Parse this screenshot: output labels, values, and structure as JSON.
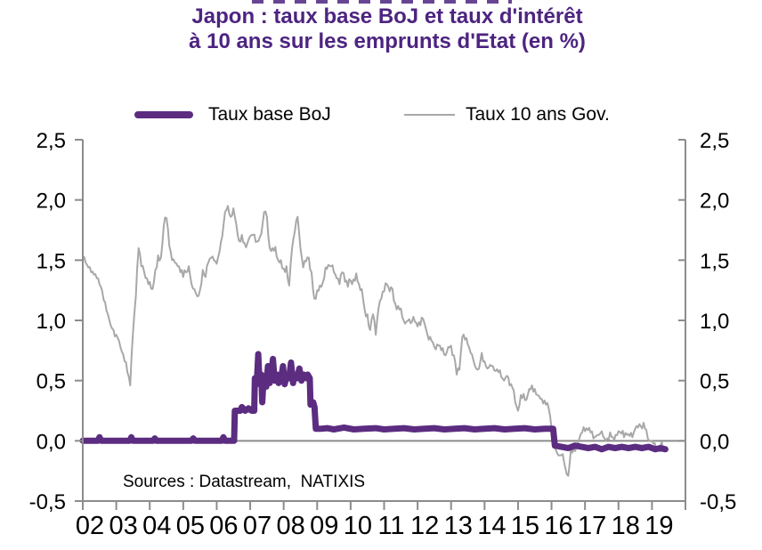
{
  "title": {
    "line1": "Japon : taux base BoJ et taux d'intérêt",
    "line2": "à 10 ans sur les emprunts d'Etat (en %)"
  },
  "legend": {
    "boj_label": "Taux base BoJ",
    "gov_label": "Taux 10 ans Gov."
  },
  "source_note": "Sources : Datastream,  NATIXIS",
  "colors": {
    "title_purple": "#4d2480",
    "boj_line": "#5b2c80",
    "gov_line": "#a8a8a8",
    "axis_gray": "#8c8c8c",
    "text_black": "#000000"
  },
  "chart_data": {
    "type": "line",
    "title": "Japon : taux base BoJ et taux d'intérêt à 10 ans sur les emprunts d'Etat (en %)",
    "xlabel": "",
    "ylabel": "%",
    "ylim": [
      -0.5,
      2.5
    ],
    "x_range_years": [
      2002,
      2020
    ],
    "grid": false,
    "zero_line": true,
    "legend_position": "top",
    "y_tick_values": [
      2.5,
      2.0,
      1.5,
      1.0,
      0.5,
      0.0,
      -0.5
    ],
    "y_tick_labels": [
      "2,5",
      "2,0",
      "1,5",
      "1,0",
      "0,5",
      "0,0",
      "-0,5"
    ],
    "y_axis_sides": [
      "left",
      "right"
    ],
    "x_tick_labels": [
      "02",
      "03",
      "04",
      "05",
      "06",
      "07",
      "08",
      "09",
      "10",
      "11",
      "12",
      "13",
      "14",
      "15",
      "16",
      "17",
      "18",
      "19"
    ],
    "series": [
      {
        "name": "Taux 10 ans Gov.",
        "color": "#a8a8a8",
        "stroke_width": 2,
        "x_start": 2002.0,
        "x_step": 0.0833333,
        "values": [
          1.5,
          1.48,
          1.44,
          1.4,
          1.38,
          1.35,
          1.3,
          1.24,
          1.15,
          1.05,
          0.96,
          0.92,
          0.88,
          0.83,
          0.74,
          0.66,
          0.57,
          0.46,
          0.9,
          1.2,
          1.6,
          1.45,
          1.4,
          1.35,
          1.32,
          1.26,
          1.42,
          1.54,
          1.52,
          1.78,
          1.85,
          1.62,
          1.5,
          1.48,
          1.45,
          1.4,
          1.36,
          1.4,
          1.45,
          1.3,
          1.26,
          1.2,
          1.25,
          1.42,
          1.36,
          1.48,
          1.52,
          1.5,
          1.47,
          1.57,
          1.7,
          1.9,
          1.95,
          1.86,
          1.93,
          1.8,
          1.66,
          1.71,
          1.64,
          1.64,
          1.7,
          1.71,
          1.65,
          1.66,
          1.72,
          1.9,
          1.86,
          1.6,
          1.6,
          1.61,
          1.5,
          1.5,
          1.43,
          1.45,
          1.29,
          1.6,
          1.74,
          1.86,
          1.6,
          1.44,
          1.49,
          1.52,
          1.4,
          1.18,
          1.25,
          1.29,
          1.31,
          1.44,
          1.46,
          1.45,
          1.4,
          1.35,
          1.3,
          1.4,
          1.32,
          1.28,
          1.33,
          1.34,
          1.39,
          1.3,
          1.26,
          1.09,
          1.05,
          0.92,
          1.05,
          0.88,
          1.1,
          1.18,
          1.24,
          1.3,
          1.24,
          1.26,
          1.14,
          1.12,
          1.1,
          1.0,
          0.99,
          1.01,
          0.99,
          0.99,
          0.95,
          0.96,
          1.01,
          0.93,
          0.84,
          0.83,
          0.78,
          0.8,
          0.79,
          0.77,
          0.71,
          0.78,
          0.79,
          0.71,
          0.55,
          0.59,
          0.86,
          0.84,
          0.8,
          0.73,
          0.67,
          0.6,
          0.6,
          0.73,
          0.66,
          0.6,
          0.63,
          0.62,
          0.58,
          0.57,
          0.53,
          0.5,
          0.54,
          0.46,
          0.44,
          0.32,
          0.25,
          0.38,
          0.39,
          0.34,
          0.43,
          0.46,
          0.43,
          0.38,
          0.35,
          0.31,
          0.3,
          0.27,
          0.1,
          -0.05,
          -0.1,
          -0.12,
          -0.11,
          -0.23,
          -0.29,
          -0.06,
          -0.07,
          -0.05,
          0.02,
          0.07,
          0.08,
          0.09,
          0.07,
          0.02,
          0.04,
          0.05,
          0.08,
          0.02,
          0.02,
          0.07,
          0.03,
          0.05,
          0.08,
          0.06,
          0.03,
          0.05,
          0.04,
          0.03,
          0.1,
          0.11,
          0.12,
          0.15,
          0.09,
          0.0,
          0.0,
          -0.02,
          -0.05,
          -0.04,
          -0.06,
          -0.08
        ]
      },
      {
        "name": "Taux base BoJ",
        "color": "#5b2c80",
        "stroke_width": 7,
        "points": [
          [
            2002.0,
            0.001
          ],
          [
            2002.45,
            0.001
          ],
          [
            2002.5,
            0.03
          ],
          [
            2002.55,
            0.001
          ],
          [
            2003.4,
            0.001
          ],
          [
            2003.45,
            0.03
          ],
          [
            2003.5,
            0.001
          ],
          [
            2004.1,
            0.001
          ],
          [
            2004.15,
            0.02
          ],
          [
            2004.2,
            0.001
          ],
          [
            2005.25,
            0.001
          ],
          [
            2005.3,
            0.02
          ],
          [
            2005.35,
            0.001
          ],
          [
            2006.15,
            0.001
          ],
          [
            2006.2,
            0.03
          ],
          [
            2006.25,
            0.001
          ],
          [
            2006.52,
            0.001
          ],
          [
            2006.54,
            0.25
          ],
          [
            2006.7,
            0.25
          ],
          [
            2006.75,
            0.28
          ],
          [
            2006.85,
            0.25
          ],
          [
            2006.95,
            0.27
          ],
          [
            2007.05,
            0.25
          ],
          [
            2007.12,
            0.25
          ],
          [
            2007.14,
            0.52
          ],
          [
            2007.2,
            0.5
          ],
          [
            2007.24,
            0.72
          ],
          [
            2007.28,
            0.47
          ],
          [
            2007.33,
            0.55
          ],
          [
            2007.36,
            0.32
          ],
          [
            2007.4,
            0.52
          ],
          [
            2007.48,
            0.45
          ],
          [
            2007.53,
            0.62
          ],
          [
            2007.58,
            0.48
          ],
          [
            2007.63,
            0.55
          ],
          [
            2007.68,
            0.68
          ],
          [
            2007.73,
            0.5
          ],
          [
            2007.8,
            0.55
          ],
          [
            2007.85,
            0.48
          ],
          [
            2007.92,
            0.52
          ],
          [
            2007.98,
            0.62
          ],
          [
            2008.03,
            0.47
          ],
          [
            2008.1,
            0.55
          ],
          [
            2008.16,
            0.52
          ],
          [
            2008.22,
            0.65
          ],
          [
            2008.28,
            0.48
          ],
          [
            2008.33,
            0.55
          ],
          [
            2008.4,
            0.52
          ],
          [
            2008.47,
            0.6
          ],
          [
            2008.53,
            0.5
          ],
          [
            2008.6,
            0.55
          ],
          [
            2008.67,
            0.52
          ],
          [
            2008.72,
            0.55
          ],
          [
            2008.78,
            0.52
          ],
          [
            2008.8,
            0.3
          ],
          [
            2008.88,
            0.32
          ],
          [
            2008.92,
            0.28
          ],
          [
            2008.96,
            0.1
          ],
          [
            2009.1,
            0.1
          ],
          [
            2009.3,
            0.105
          ],
          [
            2009.5,
            0.095
          ],
          [
            2009.8,
            0.11
          ],
          [
            2010.1,
            0.095
          ],
          [
            2010.4,
            0.1
          ],
          [
            2010.75,
            0.105
          ],
          [
            2011.0,
            0.095
          ],
          [
            2011.3,
            0.1
          ],
          [
            2011.6,
            0.105
          ],
          [
            2011.9,
            0.095
          ],
          [
            2012.2,
            0.1
          ],
          [
            2012.5,
            0.105
          ],
          [
            2012.8,
            0.095
          ],
          [
            2013.1,
            0.1
          ],
          [
            2013.4,
            0.105
          ],
          [
            2013.7,
            0.095
          ],
          [
            2014.0,
            0.1
          ],
          [
            2014.3,
            0.105
          ],
          [
            2014.6,
            0.095
          ],
          [
            2014.9,
            0.1
          ],
          [
            2015.2,
            0.105
          ],
          [
            2015.5,
            0.095
          ],
          [
            2015.8,
            0.1
          ],
          [
            2016.05,
            0.1
          ],
          [
            2016.1,
            -0.04
          ],
          [
            2016.3,
            -0.05
          ],
          [
            2016.5,
            -0.06
          ],
          [
            2016.7,
            -0.04
          ],
          [
            2016.9,
            -0.05
          ],
          [
            2017.1,
            -0.06
          ],
          [
            2017.3,
            -0.05
          ],
          [
            2017.5,
            -0.07
          ],
          [
            2017.7,
            -0.05
          ],
          [
            2017.9,
            -0.06
          ],
          [
            2018.1,
            -0.05
          ],
          [
            2018.3,
            -0.06
          ],
          [
            2018.5,
            -0.05
          ],
          [
            2018.7,
            -0.06
          ],
          [
            2018.9,
            -0.05
          ],
          [
            2019.1,
            -0.07
          ],
          [
            2019.25,
            -0.06
          ],
          [
            2019.4,
            -0.07
          ]
        ]
      }
    ],
    "sources_annotation": "Sources : Datastream,  NATIXIS"
  }
}
